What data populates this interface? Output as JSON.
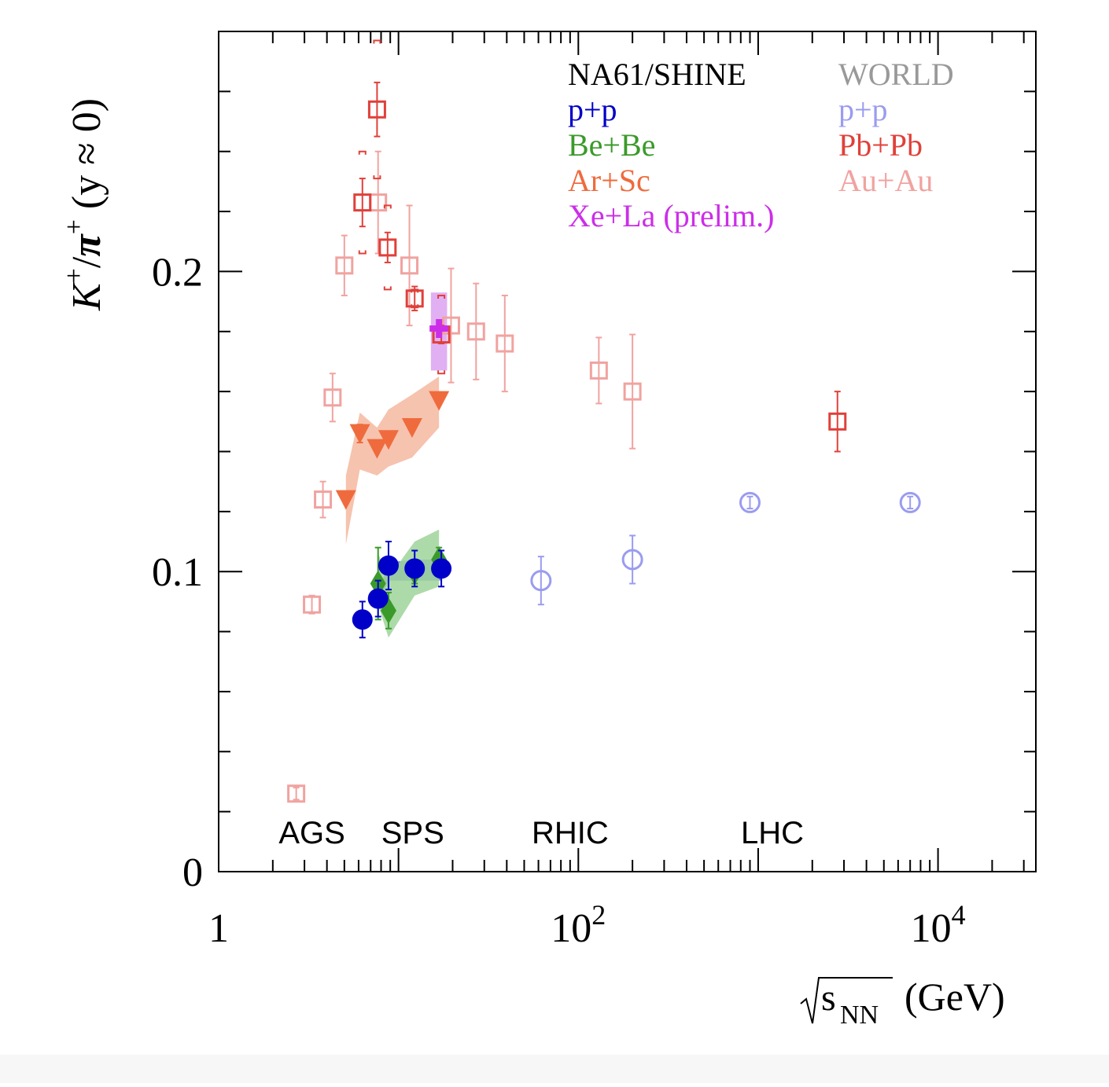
{
  "chart_data": {
    "type": "scatter",
    "x_scale": "log",
    "y_scale": "linear",
    "xlim": [
      1,
      35000
    ],
    "ylim": [
      0,
      0.28
    ],
    "title": "",
    "xlabel": {
      "radicand": "s",
      "subscript": "NN",
      "unit": "(GeV)"
    },
    "ylabel": {
      "num": "K",
      "num_sup": "+",
      "sep": "/",
      "den": "π",
      "den_sup": "+",
      "cond": "(y ≈ 0)"
    },
    "y_ticks": [
      {
        "value": 0,
        "label": "0"
      },
      {
        "value": 0.1,
        "label": "0.1"
      },
      {
        "value": 0.2,
        "label": "0.2"
      }
    ],
    "x_ticks": [
      {
        "value": 1,
        "base": "1",
        "exp": ""
      },
      {
        "value": 100,
        "base": "10",
        "exp": "2"
      },
      {
        "value": 10000,
        "base": "10",
        "exp": "4"
      }
    ],
    "legend": {
      "left_header": "NA61/SHINE",
      "right_header": "WORLD",
      "left_entries": [
        {
          "label": "p+p",
          "color": "#0000c8"
        },
        {
          "label": "Be+Be",
          "color": "#3a9a2a"
        },
        {
          "label": "Ar+Sc",
          "color": "#ef6b3d"
        },
        {
          "label": "Xe+La (prelim.)",
          "color": "#cc2ee8"
        }
      ],
      "right_entries": [
        {
          "label": "p+p",
          "color": "#9a9cf0"
        },
        {
          "label": "Pb+Pb",
          "color": "#e0403a"
        },
        {
          "label": "Au+Au",
          "color": "#f0a3a0"
        }
      ],
      "header_colors": {
        "left": "#000000",
        "right": "#999999"
      }
    },
    "region_labels": [
      {
        "label": "AGS",
        "x": 3.3
      },
      {
        "label": "SPS",
        "x": 12
      },
      {
        "label": "RHIC",
        "x": 90
      },
      {
        "label": "LHC",
        "x": 1200
      }
    ],
    "series": [
      {
        "name": "NA61/SHINE p+p",
        "marker": "circle-filled",
        "color": "#0000c8",
        "band": {
          "x": [
            7.7,
            8.8,
            12.3,
            17.3
          ],
          "y_low": [
            0.089,
            0.097,
            0.097,
            0.097
          ],
          "y_high": [
            0.093,
            0.103,
            0.104,
            0.104
          ],
          "color": "#5b6fd8"
        },
        "points": [
          {
            "x": 6.3,
            "y": 0.084,
            "err": 0.006
          },
          {
            "x": 7.7,
            "y": 0.091,
            "err": 0.006
          },
          {
            "x": 8.8,
            "y": 0.102,
            "err": 0.008
          },
          {
            "x": 12.3,
            "y": 0.101,
            "err": 0.006
          },
          {
            "x": 17.3,
            "y": 0.101,
            "err": 0.006
          }
        ]
      },
      {
        "name": "NA61/SHINE Be+Be",
        "marker": "diamond-filled",
        "color": "#3a9a2a",
        "band": {
          "x": [
            7.7,
            8.8,
            12.3,
            16.8
          ],
          "y_low": [
            0.089,
            0.078,
            0.092,
            0.095
          ],
          "y_high": [
            0.106,
            0.098,
            0.11,
            0.114
          ],
          "color": "#9fd49a"
        },
        "points": [
          {
            "x": 7.7,
            "y": 0.096,
            "err": 0.012
          },
          {
            "x": 8.8,
            "y": 0.087,
            "err": 0.006
          },
          {
            "x": 12.3,
            "y": 0.1,
            "err": 0.004
          },
          {
            "x": 16.8,
            "y": 0.104,
            "err": 0.004
          }
        ]
      },
      {
        "name": "NA61/SHINE Ar+Sc",
        "marker": "triangle-down-filled",
        "color": "#ef6b3d",
        "band": {
          "x": [
            5.1,
            6.1,
            7.6,
            8.8,
            11.9,
            16.8
          ],
          "y_low": [
            0.109,
            0.134,
            0.132,
            0.135,
            0.138,
            0.148
          ],
          "y_high": [
            0.132,
            0.153,
            0.148,
            0.154,
            0.159,
            0.165
          ],
          "color": "#f5b8a0"
        },
        "points": [
          {
            "x": 5.1,
            "y": 0.124,
            "err": 0
          },
          {
            "x": 6.1,
            "y": 0.146,
            "err": 0.003
          },
          {
            "x": 7.6,
            "y": 0.141,
            "err": 0
          },
          {
            "x": 8.8,
            "y": 0.144,
            "err": 0
          },
          {
            "x": 11.9,
            "y": 0.148,
            "err": 0
          },
          {
            "x": 16.8,
            "y": 0.157,
            "err": 0
          }
        ]
      },
      {
        "name": "NA61/SHINE Xe+La (prelim.)",
        "marker": "cross-filled",
        "color": "#cc2ee8",
        "band": {
          "x": [
            16.8
          ],
          "half_width_log": 0.045,
          "y_low": [
            0.167
          ],
          "y_high": [
            0.193
          ],
          "color": "#d99cf0"
        },
        "points": [
          {
            "x": 16.8,
            "y": 0.181,
            "err": 0
          }
        ]
      },
      {
        "name": "WORLD p+p",
        "marker": "circle-open",
        "color": "#9a9cf0",
        "points": [
          {
            "x": 62,
            "y": 0.097,
            "err": 0.008
          },
          {
            "x": 200,
            "y": 0.104,
            "err": 0.008
          },
          {
            "x": 900,
            "y": 0.123,
            "err": 0.002
          },
          {
            "x": 7000,
            "y": 0.123,
            "err": 0.002
          }
        ]
      },
      {
        "name": "WORLD Pb+Pb",
        "marker": "square-open",
        "color": "#e0403a",
        "points": [
          {
            "x": 6.3,
            "y": 0.223,
            "err": 0.008,
            "sys": 0.017
          },
          {
            "x": 7.6,
            "y": 0.254,
            "err": 0.009,
            "sys": 0.023
          },
          {
            "x": 8.7,
            "y": 0.208,
            "err": 0.005,
            "sys": 0.014
          },
          {
            "x": 12.3,
            "y": 0.191,
            "err": 0.004,
            "sys": 0.003
          },
          {
            "x": 17.3,
            "y": 0.179,
            "err": 0.003,
            "sys": 0.013
          },
          {
            "x": 2760,
            "y": 0.15,
            "err": 0.01
          }
        ]
      },
      {
        "name": "WORLD Au+Au",
        "marker": "square-open",
        "color": "#f0a3a0",
        "points": [
          {
            "x": 2.7,
            "y": 0.026,
            "err": 0.002
          },
          {
            "x": 3.3,
            "y": 0.089,
            "err": 0.003
          },
          {
            "x": 3.8,
            "y": 0.124,
            "err": 0.006
          },
          {
            "x": 4.3,
            "y": 0.158,
            "err": 0.008
          },
          {
            "x": 5.0,
            "y": 0.202,
            "err": 0.01
          },
          {
            "x": 7.7,
            "y": 0.223,
            "err": 0.017
          },
          {
            "x": 11.5,
            "y": 0.202,
            "err": 0.02
          },
          {
            "x": 19.6,
            "y": 0.182,
            "err": 0.019
          },
          {
            "x": 27,
            "y": 0.18,
            "err": 0.016
          },
          {
            "x": 39,
            "y": 0.176,
            "err": 0.016
          },
          {
            "x": 130,
            "y": 0.167,
            "err": 0.011
          },
          {
            "x": 200,
            "y": 0.16,
            "err": 0.019
          }
        ]
      }
    ]
  }
}
